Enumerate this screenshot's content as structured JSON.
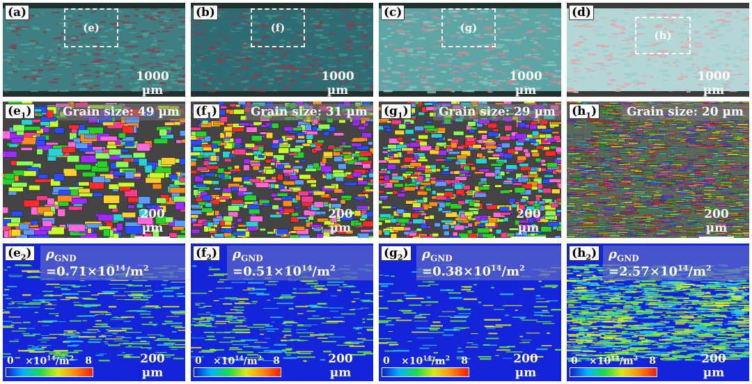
{
  "rows": [
    [
      {
        "tag_main": "(a)",
        "tag_sub": "",
        "roi_label": "(e)",
        "scale": "1000 µm",
        "colors": [
          "#3f7f82",
          "#8a3b48",
          "#4fa39a"
        ]
      },
      {
        "tag_main": "(b)",
        "tag_sub": "",
        "roi_label": "(f)",
        "scale": "1000 µm",
        "colors": [
          "#2f6c73",
          "#8f3b47",
          "#3f9089"
        ]
      },
      {
        "tag_main": "(c)",
        "tag_sub": "",
        "roi_label": "(g)",
        "scale": "1000 µm",
        "colors": [
          "#5ea6a6",
          "#c98a90",
          "#8ac6bd"
        ]
      },
      {
        "tag_main": "(d)",
        "tag_sub": "",
        "roi_label": "(h)",
        "scale": "1000 µm",
        "colors": [
          "#b5d6d6",
          "#e7a3a8",
          "#9ccfd0"
        ]
      }
    ],
    [
      {
        "tag_main": "(e",
        "tag_sub": "1",
        "tag_close": ")",
        "grain": "Grain size: 49 µm",
        "scale": "200 µm"
      },
      {
        "tag_main": "(f",
        "tag_sub": "1",
        "tag_close": ")",
        "grain": "Grain size: 31 µm",
        "scale": "200 µm"
      },
      {
        "tag_main": "(g",
        "tag_sub": "1",
        "tag_close": ")",
        "grain": "Grain size: 29 µm",
        "scale": "200 µm"
      },
      {
        "tag_main": "(h",
        "tag_sub": "1",
        "tag_close": ")",
        "grain": "Grain size: 20 µm",
        "scale": "200 µm"
      }
    ],
    [
      {
        "tag_main": "(e",
        "tag_sub": "2",
        "tag_close": ")",
        "rho_sym": "ρ",
        "rho_sub": "GND",
        "rho_val": " =0.71×10",
        "rho_exp": "14",
        "rho_unit": "/m",
        "rho_unit_exp": "2",
        "scale": "200 µm",
        "cbar_min": "0",
        "cbar_mid": "×10",
        "cbar_mid_exp": "14",
        "cbar_mid_unit": "/m",
        "cbar_mid_unit_exp": "2",
        "cbar_max": "8"
      },
      {
        "tag_main": "(f",
        "tag_sub": "2",
        "tag_close": ")",
        "rho_sym": "ρ",
        "rho_sub": "GND",
        "rho_val": " =0.51×10",
        "rho_exp": "14",
        "rho_unit": "/m",
        "rho_unit_exp": "2",
        "scale": "200 µm",
        "cbar_min": "0",
        "cbar_mid": "×10",
        "cbar_mid_exp": "14",
        "cbar_mid_unit": "/m",
        "cbar_mid_unit_exp": "2",
        "cbar_max": "8"
      },
      {
        "tag_main": "(g",
        "tag_sub": "2",
        "tag_close": ")",
        "rho_sym": "ρ",
        "rho_sub": "GND",
        "rho_val": " =0.38×10",
        "rho_exp": "14",
        "rho_unit": "/m",
        "rho_unit_exp": "2",
        "scale": "200 µm",
        "cbar_min": "0",
        "cbar_mid": "×10",
        "cbar_mid_exp": "14",
        "cbar_mid_unit": "/m",
        "cbar_mid_unit_exp": "2",
        "cbar_max": "8"
      },
      {
        "tag_main": "(h",
        "tag_sub": "2",
        "tag_close": ")",
        "rho_sym": "ρ",
        "rho_sub": "GND",
        "rho_val": " =2.57×10",
        "rho_exp": "14",
        "rho_unit": "/m",
        "rho_unit_exp": "2",
        "scale": "200 µm",
        "cbar_min": "0",
        "cbar_mid": "×10",
        "cbar_mid_exp": "14",
        "cbar_mid_unit": "/m",
        "cbar_mid_unit_exp": "2",
        "cbar_max": "8"
      }
    ]
  ],
  "palette": {
    "ebsd": [
      "#ff2a2a",
      "#2ad12a",
      "#2a4dff",
      "#ff6ad8",
      "#ffd12a",
      "#2ad1d1",
      "#a02aff",
      "#ff8c1a",
      "#8cff5a",
      "#5a9cff",
      "#ff3c8c",
      "#c8ff2a"
    ],
    "kam_bg": "#1424d8",
    "kam_low": "#22c8ff",
    "kam_mid": "#6cf03c",
    "kam_high": "#e8f02a"
  }
}
